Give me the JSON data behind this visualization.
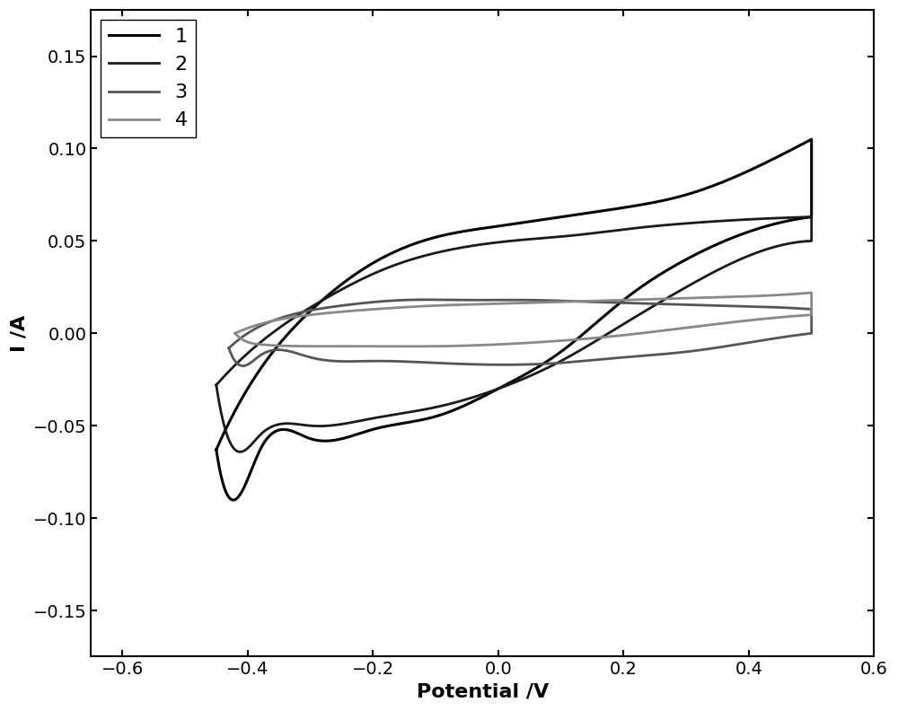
{
  "xlim": [
    -0.65,
    0.6
  ],
  "ylim": [
    -0.175,
    0.175
  ],
  "xlabel": "Potential /V",
  "ylabel": "I /A",
  "xticks": [
    -0.6,
    -0.4,
    -0.2,
    0.0,
    0.2,
    0.4,
    0.6
  ],
  "yticks": [
    -0.15,
    -0.1,
    -0.05,
    0.0,
    0.05,
    0.1,
    0.15
  ],
  "legend_loc": "upper left",
  "background_color": "#ffffff",
  "figsize": [
    10.0,
    7.92
  ],
  "dpi": 100,
  "tick_fontsize": 14,
  "label_fontsize": 16,
  "legend_fontsize": 16,
  "curves": [
    {
      "label": "1",
      "color": "#000000",
      "linewidth": 2.2,
      "upper": [
        [
          -0.45,
          -0.063
        ],
        [
          -0.4,
          -0.03
        ],
        [
          -0.3,
          0.012
        ],
        [
          -0.2,
          0.038
        ],
        [
          -0.1,
          0.052
        ],
        [
          0.0,
          0.058
        ],
        [
          0.1,
          0.063
        ],
        [
          0.2,
          0.068
        ],
        [
          0.3,
          0.075
        ],
        [
          0.4,
          0.088
        ],
        [
          0.5,
          0.105
        ]
      ],
      "lower": [
        [
          0.5,
          0.063
        ],
        [
          0.4,
          0.055
        ],
        [
          0.3,
          0.04
        ],
        [
          0.2,
          0.018
        ],
        [
          0.1,
          -0.01
        ],
        [
          0.0,
          -0.03
        ],
        [
          -0.1,
          -0.045
        ],
        [
          -0.2,
          -0.052
        ],
        [
          -0.3,
          -0.057
        ],
        [
          -0.38,
          -0.063
        ],
        [
          -0.42,
          -0.09
        ],
        [
          -0.45,
          -0.063
        ]
      ]
    },
    {
      "label": "2",
      "color": "#1a1a1a",
      "linewidth": 2.0,
      "upper": [
        [
          -0.45,
          -0.028
        ],
        [
          -0.38,
          -0.005
        ],
        [
          -0.28,
          0.018
        ],
        [
          -0.18,
          0.035
        ],
        [
          -0.08,
          0.045
        ],
        [
          0.02,
          0.05
        ],
        [
          0.12,
          0.053
        ],
        [
          0.22,
          0.057
        ],
        [
          0.32,
          0.06
        ],
        [
          0.42,
          0.062
        ],
        [
          0.5,
          0.063
        ]
      ],
      "lower": [
        [
          0.5,
          0.05
        ],
        [
          0.4,
          0.042
        ],
        [
          0.3,
          0.025
        ],
        [
          0.2,
          0.005
        ],
        [
          0.1,
          -0.015
        ],
        [
          0.0,
          -0.03
        ],
        [
          -0.1,
          -0.04
        ],
        [
          -0.2,
          -0.046
        ],
        [
          -0.3,
          -0.05
        ],
        [
          -0.38,
          -0.055
        ],
        [
          -0.42,
          -0.063
        ],
        [
          -0.45,
          -0.028
        ]
      ]
    },
    {
      "label": "3",
      "color": "#555555",
      "linewidth": 2.0,
      "upper": [
        [
          -0.43,
          -0.008
        ],
        [
          -0.4,
          0.0
        ],
        [
          -0.35,
          0.008
        ],
        [
          -0.25,
          0.015
        ],
        [
          -0.15,
          0.018
        ],
        [
          -0.05,
          0.018
        ],
        [
          0.05,
          0.018
        ],
        [
          0.15,
          0.017
        ],
        [
          0.25,
          0.016
        ],
        [
          0.35,
          0.015
        ],
        [
          0.45,
          0.014
        ],
        [
          0.5,
          0.013
        ]
      ],
      "lower": [
        [
          0.5,
          0.0
        ],
        [
          0.4,
          -0.005
        ],
        [
          0.3,
          -0.01
        ],
        [
          0.2,
          -0.013
        ],
        [
          0.1,
          -0.016
        ],
        [
          0.0,
          -0.017
        ],
        [
          -0.1,
          -0.016
        ],
        [
          -0.2,
          -0.015
        ],
        [
          -0.3,
          -0.013
        ],
        [
          -0.38,
          -0.012
        ],
        [
          -0.42,
          -0.015
        ],
        [
          -0.43,
          -0.008
        ]
      ]
    },
    {
      "label": "4",
      "color": "#888888",
      "linewidth": 2.0,
      "upper": [
        [
          -0.42,
          0.0
        ],
        [
          -0.38,
          0.005
        ],
        [
          -0.3,
          0.01
        ],
        [
          -0.2,
          0.013
        ],
        [
          -0.1,
          0.015
        ],
        [
          0.0,
          0.016
        ],
        [
          0.1,
          0.017
        ],
        [
          0.2,
          0.018
        ],
        [
          0.3,
          0.019
        ],
        [
          0.4,
          0.02
        ],
        [
          0.5,
          0.022
        ]
      ],
      "lower": [
        [
          0.5,
          0.01
        ],
        [
          0.4,
          0.007
        ],
        [
          0.3,
          0.003
        ],
        [
          0.2,
          -0.001
        ],
        [
          0.1,
          -0.004
        ],
        [
          0.0,
          -0.006
        ],
        [
          -0.1,
          -0.007
        ],
        [
          -0.2,
          -0.007
        ],
        [
          -0.3,
          -0.007
        ],
        [
          -0.38,
          -0.006
        ],
        [
          -0.41,
          -0.003
        ],
        [
          -0.42,
          0.0
        ]
      ]
    }
  ]
}
